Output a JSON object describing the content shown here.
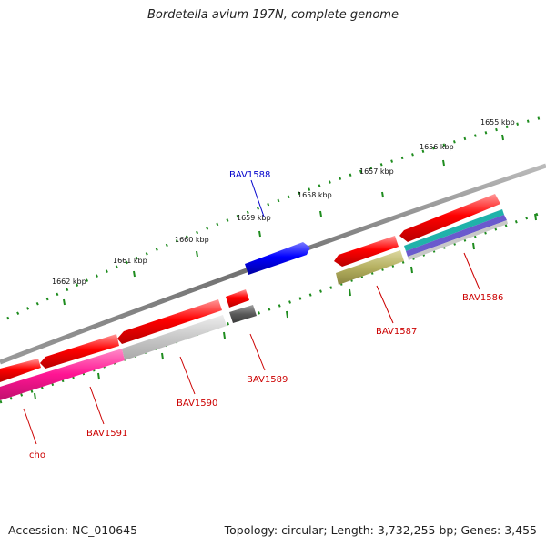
{
  "title": "Bordetella avium 197N, complete genome",
  "footer": {
    "accession": "Accession: NC_010645",
    "summary": "Topology: circular; Length: 3,732,255 bp; Genes: 3,455"
  },
  "colors": {
    "red": "#ff0000",
    "blue": "#0000ff",
    "pink": "#ff1493",
    "light_gray": "#c8c8c8",
    "dark_gray": "#5a5a5a",
    "olive": "#b5b060",
    "teal": "#20b2aa",
    "purple": "#6a5acd",
    "tick_green": "#1e8c1e",
    "label_red": "#cc0000",
    "label_blue": "#0000cc"
  },
  "kbp_labels": [
    "1655 kbp",
    "1656 kbp",
    "1657 kbp",
    "1658 kbp",
    "1659 kbp",
    "1660 kbp",
    "1661 kbp",
    "1662 kbp"
  ],
  "gene_labels": {
    "bav1586": "BAV1586",
    "bav1587": "BAV1587",
    "bav1588": "BAV1588",
    "bav1589": "BAV1589",
    "bav1590": "BAV1590",
    "bav1591": "BAV1591",
    "cho": "cho"
  }
}
